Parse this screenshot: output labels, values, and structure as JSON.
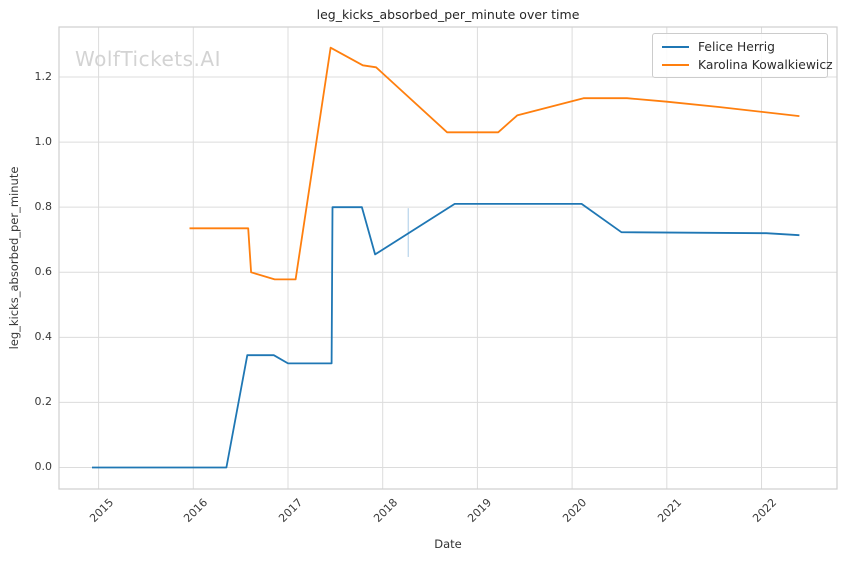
{
  "watermark": "WolfTickets.AI",
  "colors": {
    "grid": "#dcdcdc",
    "spine": "#cfcfcf",
    "background": "#ffffff",
    "series_blue": "#1f77b4",
    "series_orange": "#ff7f0e",
    "error_bar": "#bdd7ec",
    "watermark_text": "#d3d3d3"
  },
  "chart_data": {
    "type": "line",
    "title": "leg_kicks_absorbed_per_minute over time",
    "xlabel": "Date",
    "ylabel": "leg_kicks_absorbed_per_minute",
    "xlim": [
      2014.582,
      2022.797
    ],
    "ylim": [
      -0.0661,
      1.3537
    ],
    "xticks": [
      2015,
      2016,
      2017,
      2018,
      2019,
      2020,
      2021,
      2022
    ],
    "x_tick_labels": [
      "2015",
      "2016",
      "2017",
      "2018",
      "2019",
      "2020",
      "2021",
      "2022"
    ],
    "yticks": [
      0.0,
      0.2,
      0.4,
      0.6,
      0.8,
      1.0,
      1.2
    ],
    "y_tick_labels": [
      "0.0",
      "0.2",
      "0.4",
      "0.6",
      "0.8",
      "1.0",
      "1.2"
    ],
    "grid": true,
    "legend_position": "upper right",
    "series": [
      {
        "name": "Felice Herrig",
        "color": "#1f77b4",
        "points": [
          [
            2014.93,
            0.0
          ],
          [
            2016.35,
            0.0
          ],
          [
            2016.57,
            0.345
          ],
          [
            2016.85,
            0.345
          ],
          [
            2017.0,
            0.32
          ],
          [
            2017.46,
            0.32
          ],
          [
            2017.47,
            0.8
          ],
          [
            2017.78,
            0.8
          ],
          [
            2017.92,
            0.655
          ],
          [
            2018.76,
            0.81
          ],
          [
            2020.1,
            0.81
          ],
          [
            2020.52,
            0.723
          ],
          [
            2022.05,
            0.72
          ],
          [
            2022.4,
            0.714
          ]
        ]
      },
      {
        "name": "Karolina Kowalkiewicz",
        "color": "#ff7f0e",
        "points": [
          [
            2015.96,
            0.735
          ],
          [
            2016.58,
            0.735
          ],
          [
            2016.61,
            0.6
          ],
          [
            2016.86,
            0.578
          ],
          [
            2017.08,
            0.578
          ],
          [
            2017.45,
            1.29
          ],
          [
            2017.79,
            1.236
          ],
          [
            2017.93,
            1.23
          ],
          [
            2018.68,
            1.03
          ],
          [
            2019.22,
            1.03
          ],
          [
            2019.42,
            1.082
          ],
          [
            2020.12,
            1.135
          ],
          [
            2020.58,
            1.135
          ],
          [
            2021.0,
            1.124
          ],
          [
            2021.55,
            1.108
          ],
          [
            2022.4,
            1.08
          ]
        ]
      }
    ],
    "error_bar": {
      "x": 2018.27,
      "y_low": 0.647,
      "y_high": 0.797
    }
  }
}
